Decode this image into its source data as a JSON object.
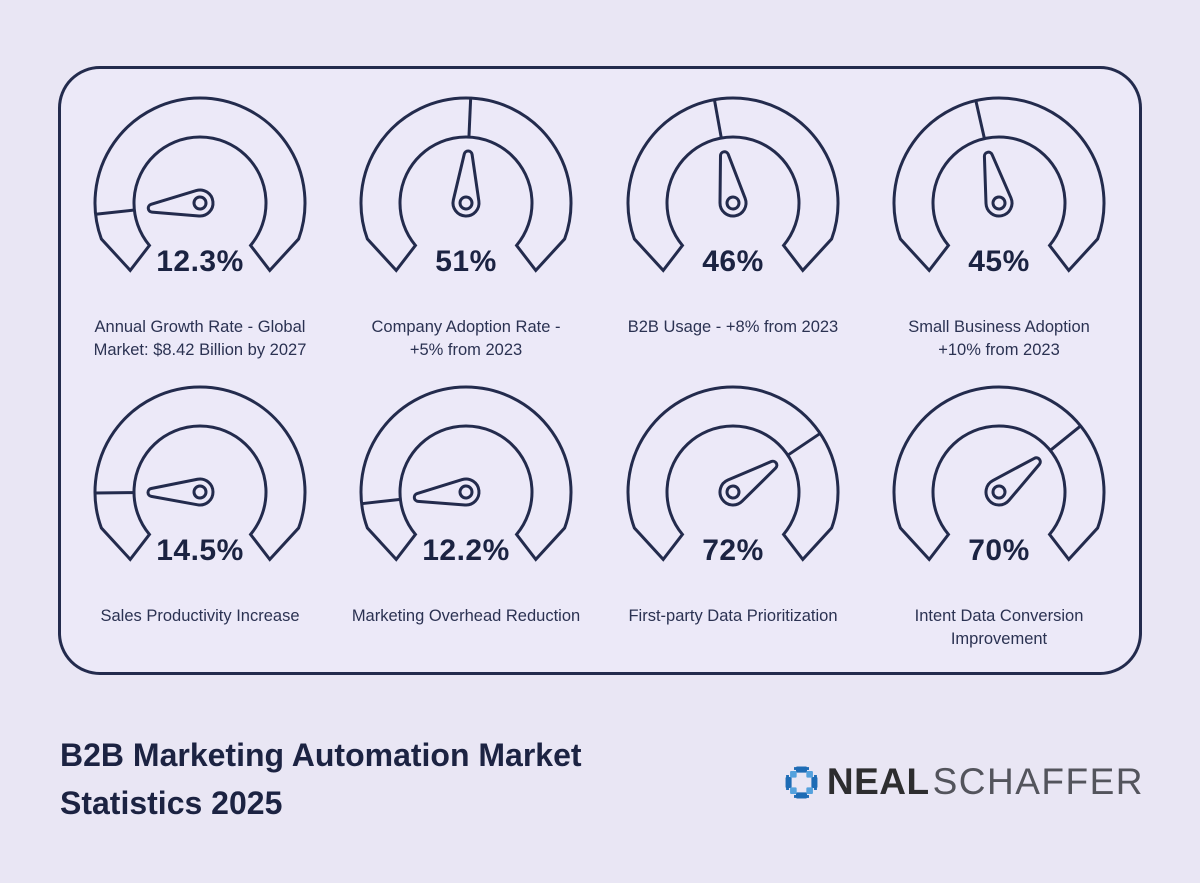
{
  "theme": {
    "background": "#e9e6f4",
    "card_background": "#ece9f8",
    "ink": "#232b4d",
    "value_color": "#1b2342",
    "label_color": "#2b3252",
    "title_color": "#1c2342",
    "logo_dark_text": "#2d2d2f",
    "logo_light_text": "#53545c",
    "logo_blue_dark": "#1e6cb5",
    "logo_blue_light": "#54a1dd"
  },
  "chart_data": [
    {
      "type": "gauge",
      "value": 12.3,
      "value_label": "12.3%",
      "label": "Annual Growth Rate - Global\nMarket: $8.42 Billion by 2027",
      "range": [
        0,
        100
      ]
    },
    {
      "type": "gauge",
      "value": 51,
      "value_label": "51%",
      "label": "Company Adoption Rate -\n+5% from 2023",
      "range": [
        0,
        100
      ]
    },
    {
      "type": "gauge",
      "value": 46,
      "value_label": "46%",
      "label": "B2B Usage - +8% from 2023",
      "range": [
        0,
        100
      ]
    },
    {
      "type": "gauge",
      "value": 45,
      "value_label": "45%",
      "label": "Small Business Adoption\n+10% from 2023",
      "range": [
        0,
        100
      ]
    },
    {
      "type": "gauge",
      "value": 14.5,
      "value_label": "14.5%",
      "label": "Sales Productivity Increase",
      "range": [
        0,
        100
      ]
    },
    {
      "type": "gauge",
      "value": 12.2,
      "value_label": "12.2%",
      "label": "Marketing Overhead Reduction",
      "range": [
        0,
        100
      ]
    },
    {
      "type": "gauge",
      "value": 72,
      "value_label": "72%",
      "label": "First-party Data Prioritization",
      "range": [
        0,
        100
      ]
    },
    {
      "type": "gauge",
      "value": 70,
      "value_label": "70%",
      "label": "Intent Data Conversion\nImprovement",
      "range": [
        0,
        100
      ]
    }
  ],
  "footer": {
    "title": "B2B Marketing Automation Market\nStatistics 2025",
    "brand_name_bold": "NEAL",
    "brand_name_light": "SCHAFFER"
  }
}
